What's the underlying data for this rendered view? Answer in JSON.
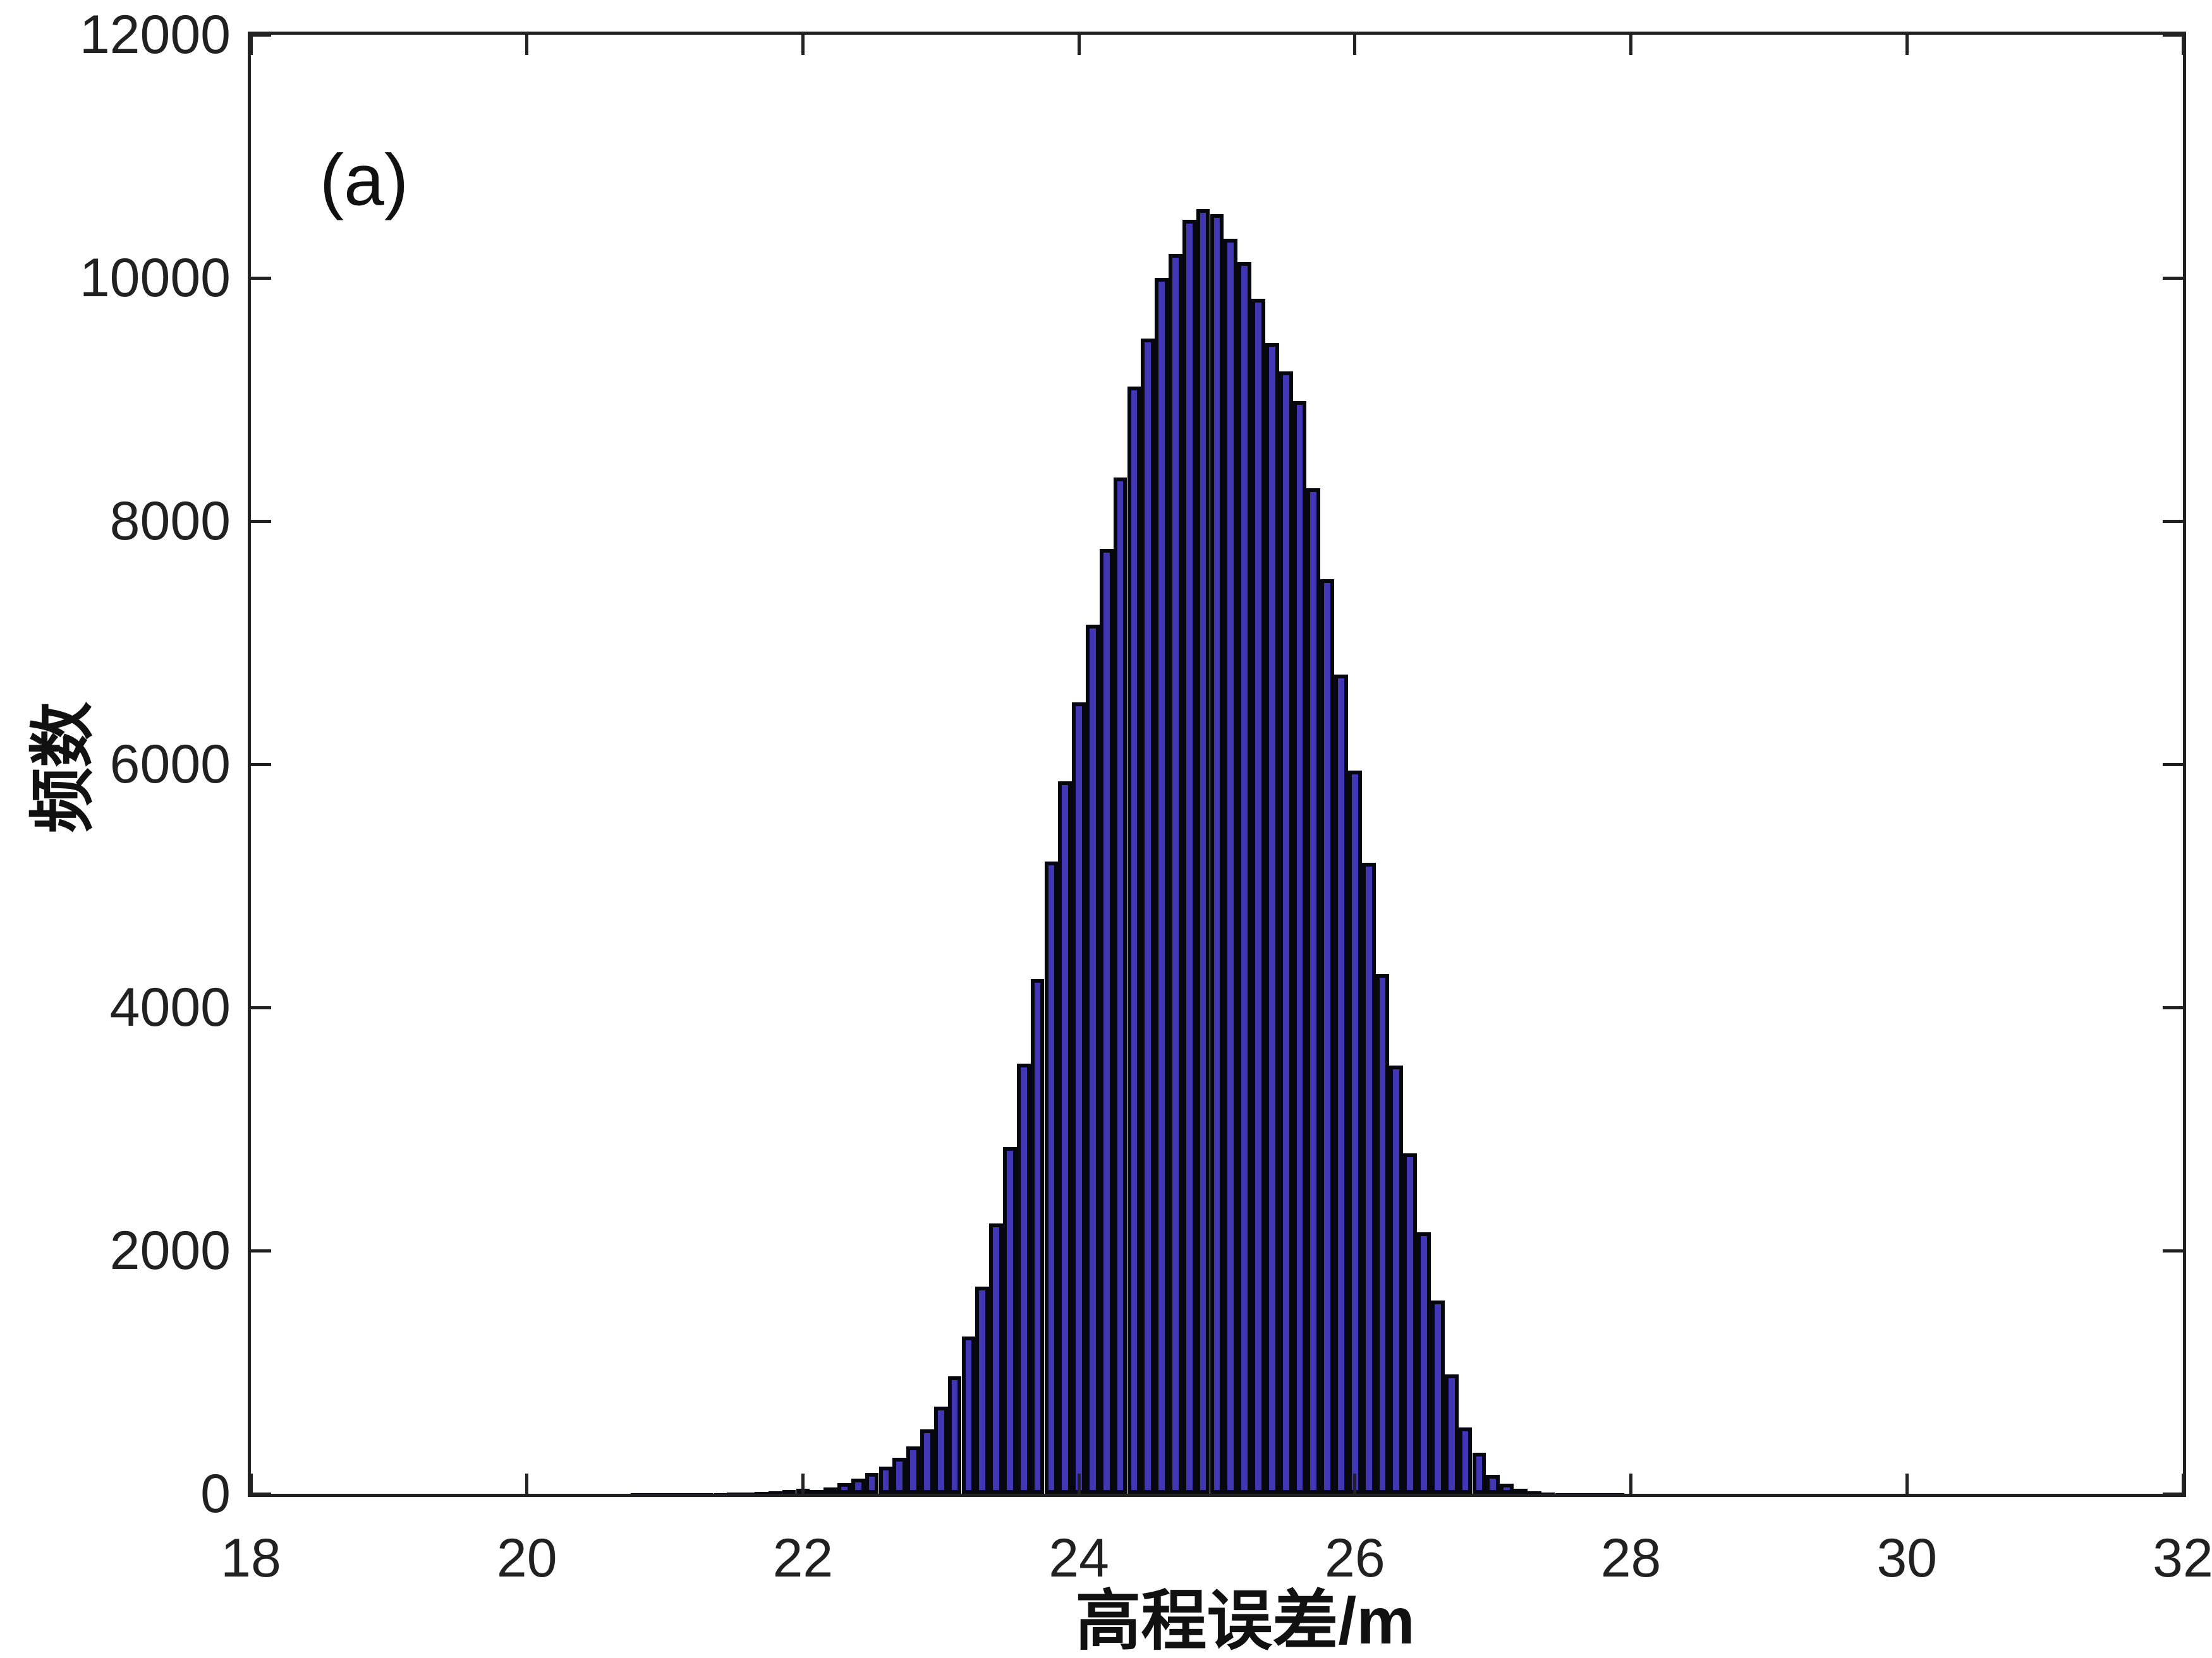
{
  "figure": {
    "panel_label": "(a)",
    "xlabel": "高程误差/m",
    "ylabel": "频数",
    "colors": {
      "bar_fill": "#4136b4",
      "bar_edge": "#07070f",
      "axis": "#212121",
      "background": "#ffffff"
    }
  },
  "chart_data": {
    "type": "bar",
    "subtype": "histogram",
    "title": "",
    "annotation": "(a)",
    "xlabel": "高程误差/m",
    "ylabel": "频数",
    "xlim": [
      18,
      32
    ],
    "ylim": [
      0,
      12000
    ],
    "x_ticks": [
      18,
      20,
      22,
      24,
      26,
      28,
      30,
      32
    ],
    "y_ticks": [
      0,
      2000,
      4000,
      6000,
      8000,
      10000,
      12000
    ],
    "grid": false,
    "legend_position": "none",
    "bin_width": 0.1,
    "bin_start_center": 20.8,
    "bin_centers_note": "centers run 20.8 to 28.0 in steps of 0.1, aligned with counts[]",
    "counts": [
      1,
      1,
      2,
      2,
      3,
      4,
      5,
      8,
      11,
      15,
      21,
      30,
      40,
      32,
      52,
      87,
      126,
      173,
      225,
      295,
      390,
      528,
      715,
      965,
      1295,
      1705,
      2225,
      2850,
      3540,
      4234,
      5200,
      5860,
      6510,
      7150,
      7770,
      8360,
      9108,
      9501,
      10000,
      10199,
      10476,
      10568,
      10523,
      10321,
      10130,
      9827,
      9463,
      9229,
      8987,
      8270,
      7520,
      6740,
      5950,
      5190,
      4277,
      3520,
      2800,
      2150,
      1590,
      980,
      545,
      338,
      156,
      83,
      41,
      22,
      12,
      7,
      4,
      2,
      1,
      1,
      0
    ],
    "peak_value": 10568,
    "peak_x": 24.9
  }
}
